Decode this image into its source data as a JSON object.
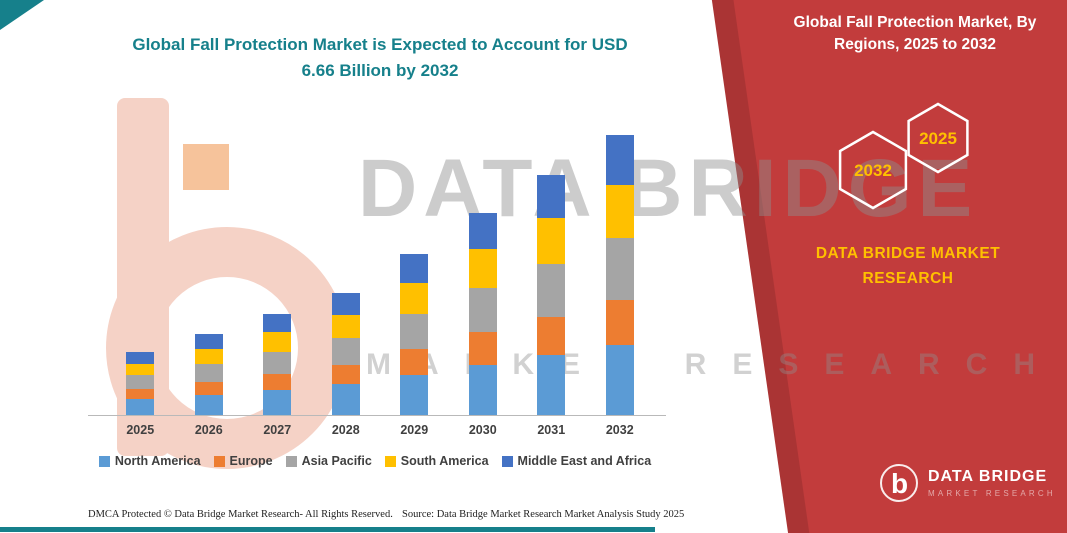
{
  "title": {
    "line1": "Global Fall Protection Market is Expected to Account for USD",
    "line2": "6.66 Billion by 2032"
  },
  "panel": {
    "heading": "Global Fall Protection Market, By Regions, 2025 to 2032",
    "hex_left_year": "2032",
    "hex_right_year": "2025",
    "brand_line1": "DATA BRIDGE MARKET",
    "brand_line2": "RESEARCH",
    "logo_name": "DATA BRIDGE",
    "logo_sub": "MARKET RESEARCH",
    "bg_color": "#c23c3c",
    "accent_color": "#ffc000"
  },
  "watermark": {
    "line1": "DATA BRIDGE",
    "line2": "MARKET RESEARCH"
  },
  "footer": {
    "left": "DMCA Protected © Data Bridge Market Research-  All Rights Reserved.",
    "source": "Source: Data Bridge Market Research  Market Analysis Study 2025"
  },
  "chart_data": {
    "type": "bar",
    "stacked": true,
    "title": "Global Fall Protection Market is Expected to Account for USD 6.66 Billion by 2032",
    "unit": "USD Billion",
    "categories": [
      "2025",
      "2026",
      "2027",
      "2028",
      "2029",
      "2030",
      "2031",
      "2032"
    ],
    "series": [
      {
        "name": "North America",
        "color": "#5B9BD5",
        "values": [
          0.37,
          0.48,
          0.6,
          0.73,
          0.96,
          1.2,
          1.43,
          1.67
        ]
      },
      {
        "name": "Europe",
        "color": "#ED7D31",
        "values": [
          0.24,
          0.31,
          0.38,
          0.46,
          0.61,
          0.77,
          0.91,
          1.07
        ]
      },
      {
        "name": "Asia Pacific",
        "color": "#A5A5A5",
        "values": [
          0.33,
          0.42,
          0.53,
          0.64,
          0.84,
          1.06,
          1.26,
          1.46
        ]
      },
      {
        "name": "South America",
        "color": "#FFC000",
        "values": [
          0.28,
          0.37,
          0.46,
          0.55,
          0.73,
          0.91,
          1.08,
          1.27
        ]
      },
      {
        "name": "Middle East and Africa",
        "color": "#4472C4",
        "values": [
          0.27,
          0.35,
          0.43,
          0.52,
          0.7,
          0.86,
          1.03,
          1.19
        ]
      }
    ],
    "totals": [
      1.49,
      1.93,
      2.4,
      2.9,
      3.84,
      4.8,
      5.71,
      6.66
    ],
    "xlabel": "",
    "ylabel": "",
    "ylim": [
      0,
      6.66
    ],
    "grid": false,
    "legend_position": "bottom"
  }
}
